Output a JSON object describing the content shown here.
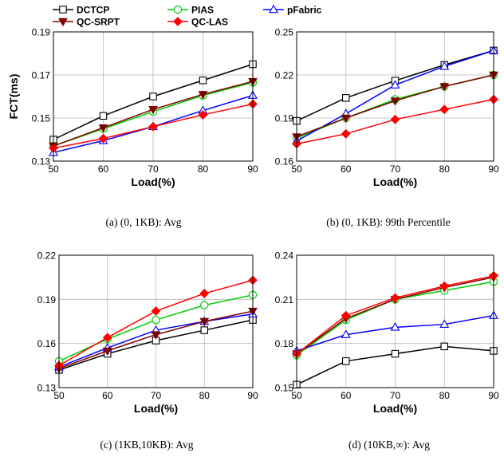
{
  "legend": [
    {
      "name": "DCTCP",
      "color": "#000000",
      "marker": "square"
    },
    {
      "name": "PIAS",
      "color": "#00cc00",
      "marker": "circle"
    },
    {
      "name": "pFabric",
      "color": "#0000ff",
      "marker": "triangle"
    },
    {
      "name": "QC-SRPT",
      "color": "#800000",
      "marker": "triangle-down"
    },
    {
      "name": "QC-LAS",
      "color": "#ff0000",
      "marker": "diamond"
    }
  ],
  "chart_data": [
    {
      "type": "line",
      "caption": "(a)  (0, 1KB): Avg",
      "xlabel": "Load(%)",
      "ylabel": "FCT(ms)",
      "x": [
        50,
        60,
        70,
        80,
        90
      ],
      "ylim": [
        0.13,
        0.19
      ],
      "yticks": [
        "0.13",
        "0.15",
        "0.17",
        "0.19"
      ],
      "xticks": [
        "50",
        "60",
        "70",
        "80",
        "90"
      ],
      "grid": true,
      "series": [
        {
          "name": "DCTCP",
          "values": [
            0.14,
            0.151,
            0.16,
            0.1675,
            0.175
          ]
        },
        {
          "name": "PIAS",
          "values": [
            0.137,
            0.145,
            0.153,
            0.1605,
            0.1665
          ]
        },
        {
          "name": "pFabric",
          "values": [
            0.134,
            0.1395,
            0.146,
            0.1535,
            0.1605
          ]
        },
        {
          "name": "QC-SRPT",
          "values": [
            0.137,
            0.1455,
            0.154,
            0.161,
            0.167
          ]
        },
        {
          "name": "QC-LAS",
          "values": [
            0.136,
            0.1405,
            0.146,
            0.1515,
            0.1565
          ]
        }
      ]
    },
    {
      "type": "line",
      "caption": "(b)  (0, 1KB): 99th Percentile",
      "xlabel": "Load(%)",
      "ylabel": "",
      "x": [
        50,
        60,
        70,
        80,
        90
      ],
      "ylim": [
        0.16,
        0.25
      ],
      "yticks": [
        "0.16",
        "0.19",
        "0.22",
        "0.25"
      ],
      "xticks": [
        "50",
        "60",
        "70",
        "80",
        "90"
      ],
      "grid": true,
      "series": [
        {
          "name": "DCTCP",
          "values": [
            0.188,
            0.204,
            0.216,
            0.227,
            0.237
          ]
        },
        {
          "name": "PIAS",
          "values": [
            0.176,
            0.19,
            0.203,
            0.212,
            0.22
          ]
        },
        {
          "name": "pFabric",
          "values": [
            0.174,
            0.193,
            0.213,
            0.226,
            0.237
          ]
        },
        {
          "name": "QC-SRPT",
          "values": [
            0.177,
            0.19,
            0.202,
            0.212,
            0.22
          ]
        },
        {
          "name": "QC-LAS",
          "values": [
            0.172,
            0.179,
            0.189,
            0.196,
            0.203
          ]
        }
      ]
    },
    {
      "type": "line",
      "caption": "(c)  (1KB,10KB): Avg",
      "xlabel": "Load(%)",
      "ylabel": "",
      "x": [
        50,
        60,
        70,
        80,
        90
      ],
      "ylim": [
        0.13,
        0.22
      ],
      "yticks": [
        "0.13",
        "0.16",
        "0.19",
        "0.22"
      ],
      "xticks": [
        "50",
        "60",
        "70",
        "80",
        "90"
      ],
      "grid": true,
      "series": [
        {
          "name": "DCTCP",
          "values": [
            0.142,
            0.153,
            0.162,
            0.169,
            0.176
          ]
        },
        {
          "name": "PIAS",
          "values": [
            0.148,
            0.163,
            0.176,
            0.186,
            0.193
          ]
        },
        {
          "name": "pFabric",
          "values": [
            0.144,
            0.157,
            0.169,
            0.175,
            0.18
          ]
        },
        {
          "name": "QC-SRPT",
          "values": [
            0.143,
            0.155,
            0.166,
            0.175,
            0.182
          ]
        },
        {
          "name": "QC-LAS",
          "values": [
            0.145,
            0.164,
            0.182,
            0.194,
            0.203
          ]
        }
      ]
    },
    {
      "type": "line",
      "caption": "(d)  (10KB,∞): Avg",
      "xlabel": "Load(%)",
      "ylabel": "",
      "x": [
        50,
        60,
        70,
        80,
        90
      ],
      "ylim": [
        0.15,
        0.24
      ],
      "yticks": [
        "0.15",
        "0.18",
        "0.21",
        "0.24"
      ],
      "xticks": [
        "50",
        "60",
        "70",
        "80",
        "90"
      ],
      "grid": true,
      "series": [
        {
          "name": "DCTCP",
          "values": [
            0.152,
            0.168,
            0.173,
            0.178,
            0.175
          ]
        },
        {
          "name": "PIAS",
          "values": [
            0.172,
            0.196,
            0.21,
            0.216,
            0.222
          ]
        },
        {
          "name": "pFabric",
          "values": [
            0.175,
            0.186,
            0.191,
            0.193,
            0.199
          ]
        },
        {
          "name": "QC-SRPT",
          "values": [
            0.173,
            0.197,
            0.21,
            0.218,
            0.225
          ]
        },
        {
          "name": "QC-LAS",
          "values": [
            0.173,
            0.199,
            0.211,
            0.219,
            0.226
          ]
        }
      ]
    }
  ]
}
